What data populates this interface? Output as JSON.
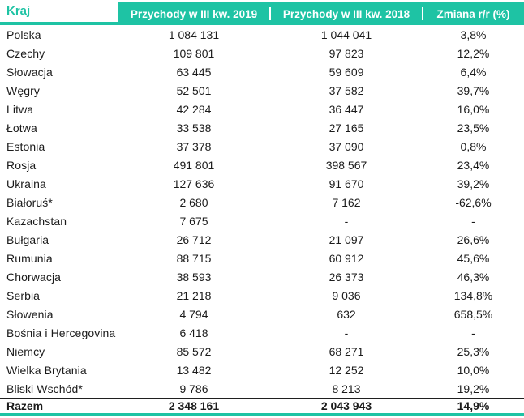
{
  "colors": {
    "accent": "#1ec3a4",
    "ink": "#1b1b1b"
  },
  "table": {
    "columns": [
      "Kraj",
      "Przychody w III kw. 2019",
      "Przychody w III kw. 2018",
      "Zmiana r/r (%)"
    ],
    "rows": [
      [
        "Polska",
        "1 084 131",
        "1 044 041",
        "3,8%"
      ],
      [
        "Czechy",
        "109 801",
        "97 823",
        "12,2%"
      ],
      [
        "Słowacja",
        "63 445",
        "59 609",
        "6,4%"
      ],
      [
        "Węgry",
        "52 501",
        "37 582",
        "39,7%"
      ],
      [
        "Litwa",
        "42 284",
        "36 447",
        "16,0%"
      ],
      [
        "Łotwa",
        "33 538",
        "27 165",
        "23,5%"
      ],
      [
        "Estonia",
        "37 378",
        "37 090",
        "0,8%"
      ],
      [
        "Rosja",
        "491 801",
        "398 567",
        "23,4%"
      ],
      [
        "Ukraina",
        "127 636",
        "91 670",
        "39,2%"
      ],
      [
        "Białoruś*",
        "2 680",
        "7 162",
        "-62,6%"
      ],
      [
        "Kazachstan",
        "7 675",
        "-",
        "-"
      ],
      [
        "Bułgaria",
        "26 712",
        "21 097",
        "26,6%"
      ],
      [
        "Rumunia",
        "88 715",
        "60 912",
        "45,6%"
      ],
      [
        "Chorwacja",
        "38 593",
        "26 373",
        "46,3%"
      ],
      [
        "Serbia",
        "21 218",
        "9 036",
        "134,8%"
      ],
      [
        "Słowenia",
        "4 794",
        "632",
        "658,5%"
      ],
      [
        "Bośnia i Hercegovina",
        "6 418",
        "-",
        "-"
      ],
      [
        "Niemcy",
        "85 572",
        "68 271",
        "25,3%"
      ],
      [
        "Wielka Brytania",
        "13 482",
        "12 252",
        "10,0%"
      ],
      [
        "Bliski Wschód*",
        "9 786",
        "8 213",
        "19,2%"
      ]
    ],
    "total": [
      "Razem",
      "2 348 161",
      "2 043 943",
      "14,9%"
    ]
  },
  "chart_data": {
    "type": "table",
    "title": "",
    "columns": [
      "Kraj",
      "Przychody w III kw. 2019",
      "Przychody w III kw. 2018",
      "Zmiana r/r (%)"
    ],
    "categories": [
      "Polska",
      "Czechy",
      "Słowacja",
      "Węgry",
      "Litwa",
      "Łotwa",
      "Estonia",
      "Rosja",
      "Ukraina",
      "Białoruś*",
      "Kazachstan",
      "Bułgaria",
      "Rumunia",
      "Chorwacja",
      "Serbia",
      "Słowenia",
      "Bośnia i Hercegovina",
      "Niemcy",
      "Wielka Brytania",
      "Bliski Wschód*",
      "Razem"
    ],
    "series": [
      {
        "name": "Przychody w III kw. 2019",
        "values": [
          1084131,
          109801,
          63445,
          52501,
          42284,
          33538,
          37378,
          491801,
          127636,
          2680,
          7675,
          26712,
          88715,
          38593,
          21218,
          4794,
          6418,
          85572,
          13482,
          9786,
          2348161
        ]
      },
      {
        "name": "Przychody w III kw. 2018",
        "values": [
          1044041,
          97823,
          59609,
          37582,
          36447,
          27165,
          37090,
          398567,
          91670,
          7162,
          null,
          21097,
          60912,
          26373,
          9036,
          632,
          null,
          68271,
          12252,
          8213,
          2043943
        ]
      },
      {
        "name": "Zmiana r/r (%)",
        "values": [
          3.8,
          12.2,
          6.4,
          39.7,
          16.0,
          23.5,
          0.8,
          23.4,
          39.2,
          -62.6,
          null,
          26.6,
          45.6,
          46.3,
          134.8,
          658.5,
          null,
          25.3,
          10.0,
          19.2,
          14.9
        ]
      }
    ],
    "layout_hints": {
      "header_background": "#1ec3a4",
      "grid": "off",
      "missing_value_marker": "-"
    }
  }
}
